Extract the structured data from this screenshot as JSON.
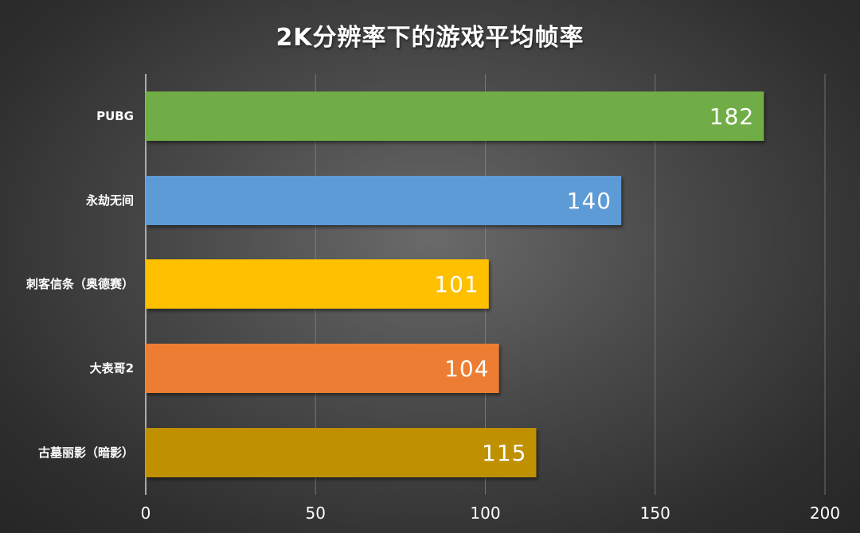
{
  "chart_data": {
    "type": "bar",
    "orientation": "horizontal",
    "title": "2K分辨率下的游戏平均帧率",
    "categories": [
      "PUBG",
      "永劫无间",
      "刺客信条（奥德赛）",
      "大表哥2",
      "古墓丽影（暗影）"
    ],
    "values": [
      182,
      140,
      101,
      104,
      115
    ],
    "data_labels": [
      "182",
      "140",
      "101",
      "104",
      "115"
    ],
    "bar_colors": [
      "#71ad47",
      "#5b9bd5",
      "#ffc000",
      "#ed7d31",
      "#bf9000"
    ],
    "xlim": [
      0,
      200
    ],
    "x_ticks": [
      "0",
      "50",
      "100",
      "150",
      "200"
    ],
    "grid": true,
    "legend": "none"
  }
}
